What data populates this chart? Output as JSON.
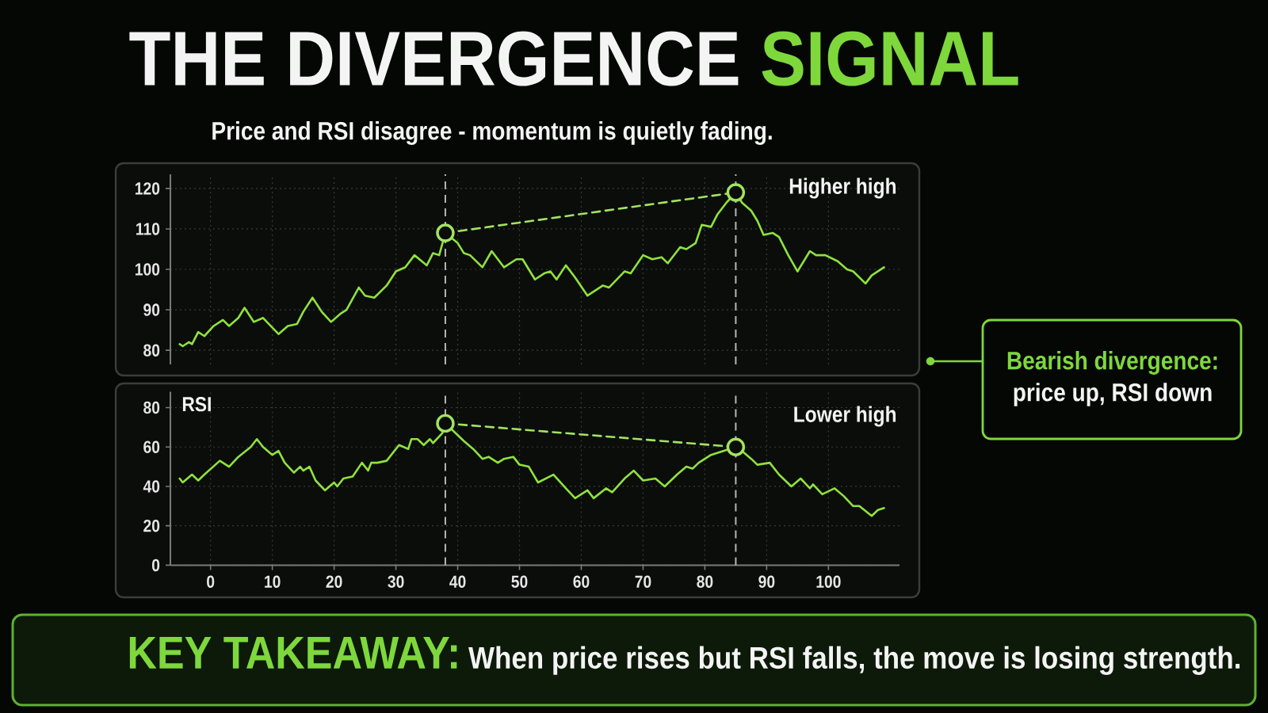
{
  "chart_data": [
    {
      "type": "line",
      "title": "THE DIVERGENCE **SIGNAL**",
      "subtitle": "Price and RSI disagree - momentum is quietly fading.",
      "xlim": [
        -6.5,
        111.5
      ],
      "xticks": [
        0,
        10,
        20,
        30,
        40,
        50,
        60,
        70,
        80,
        90,
        100
      ],
      "ylim": [
        76.5,
        123.5
      ],
      "yticks": [
        80,
        90,
        100,
        110,
        120
      ],
      "grid": true,
      "tick_labels": "y",
      "series": [
        {
          "color": "#8fe23c",
          "x": [
            -5,
            -4.5,
            -3.5,
            -3,
            -2,
            -1,
            0.5,
            2,
            3,
            4.5,
            5.5,
            7,
            8.5,
            11,
            12.5,
            14,
            15,
            16.5,
            18,
            19.5,
            21,
            22,
            24,
            25,
            26.5,
            28.5,
            30,
            31.5,
            33,
            35,
            36,
            37,
            38,
            40,
            41,
            42,
            44,
            45.5,
            47.5,
            49.5,
            50.5,
            52.5,
            54,
            55,
            56,
            57.5,
            59,
            61,
            63.5,
            64.5,
            67,
            68,
            70,
            71.5,
            73,
            74,
            76,
            77,
            78.5,
            79.5,
            81,
            82,
            83.5,
            85,
            86,
            87.5,
            88.5,
            89.5,
            91,
            92,
            93.5,
            95,
            97,
            98,
            99.5,
            101.5,
            103,
            104,
            106,
            107,
            109
          ],
          "values": [
            81.5,
            81,
            82,
            81.5,
            84.5,
            83.5,
            86,
            87.5,
            86,
            88,
            90.5,
            87,
            88,
            84,
            86,
            86.5,
            89.5,
            93,
            89.5,
            87,
            89,
            90,
            95.5,
            93.5,
            93,
            96,
            99.5,
            100.5,
            103.5,
            101,
            104,
            103.5,
            109,
            106.5,
            104,
            103.5,
            100.5,
            104.5,
            100.5,
            102.5,
            102.5,
            97.5,
            99,
            99.5,
            97.5,
            101,
            98,
            93.5,
            96,
            95.5,
            99.5,
            99,
            103.5,
            102.5,
            103,
            101.5,
            105.5,
            105,
            106.5,
            111,
            110.5,
            113.5,
            116.5,
            119,
            116.5,
            114.5,
            112,
            108.5,
            109,
            108,
            103.5,
            99.5,
            104.5,
            103.5,
            103.5,
            102,
            100,
            99.5,
            96.5,
            98.5,
            100.5
          ]
        },
        {
          "color": "#a2e35f",
          "x": [
            38,
            85
          ],
          "values": [
            109,
            119
          ],
          "marker": "circle",
          "line_style": "dashed"
        }
      ],
      "ref_lines": [
        {
          "axis": "x",
          "value": 38,
          "color": "#b5b5b5",
          "line_style": "dashed"
        },
        {
          "axis": "x",
          "value": 85,
          "color": "#b5b5b5",
          "line_style": "dashed"
        }
      ],
      "annotations": [
        "Higher high",
        "Bearish divergence:",
        "price up, RSI down"
      ]
    },
    {
      "type": "line",
      "title": "RSI",
      "xlim": [
        -6.5,
        111.5
      ],
      "xticks": [
        0,
        10,
        20,
        30,
        40,
        50,
        60,
        70,
        80,
        90,
        100
      ],
      "ylim": [
        0,
        88
      ],
      "yticks": [
        0,
        20,
        40,
        60,
        80
      ],
      "grid": true,
      "series": [
        {
          "color": "#8fe23c",
          "x": [
            -5,
            -4.5,
            -3,
            -2,
            -1,
            1.5,
            3,
            4.5,
            6.5,
            7.5,
            8.5,
            10,
            11,
            12,
            13.5,
            14.5,
            15,
            16,
            17,
            18.5,
            20,
            20.5,
            21.5,
            23,
            24.5,
            25.5,
            26,
            27,
            28.5,
            30.5,
            32,
            32.5,
            33.5,
            34.5,
            35.5,
            36,
            37.5,
            38,
            40,
            41,
            42.5,
            44,
            45,
            46.5,
            47.5,
            49,
            50,
            51.5,
            53,
            55.5,
            57.5,
            59,
            61,
            62,
            64,
            65,
            67,
            68.5,
            70,
            72,
            73.5,
            75.5,
            77,
            78,
            79,
            81,
            83,
            85,
            86,
            87.5,
            88.5,
            90.5,
            92,
            94,
            95.5,
            97,
            97.5,
            99,
            101,
            102.5,
            104,
            105,
            107,
            108,
            109
          ],
          "values": [
            44,
            42,
            46,
            43,
            46,
            53,
            50,
            55,
            60,
            64,
            60,
            56,
            58,
            52,
            47,
            50,
            48,
            50,
            43,
            38,
            42,
            40,
            44,
            45,
            52,
            48,
            52,
            52,
            53,
            61,
            59,
            64,
            64,
            61,
            64,
            62,
            67,
            72,
            66,
            63,
            59,
            54,
            55,
            52,
            54,
            55,
            51,
            50,
            42,
            46,
            39,
            34,
            38,
            34,
            39,
            37,
            44,
            48,
            43,
            44,
            40,
            46,
            50,
            49,
            52,
            56,
            58,
            60,
            58,
            54,
            51,
            52,
            46,
            40,
            44,
            39,
            41,
            36,
            39,
            35,
            30,
            30,
            25,
            28,
            29
          ]
        },
        {
          "color": "#a2e35f",
          "x": [
            38,
            85
          ],
          "values": [
            72,
            60
          ],
          "marker": "circle",
          "line_style": "dashed"
        }
      ],
      "ref_lines": [
        {
          "axis": "x",
          "value": 38,
          "color": "#b5b5b5",
          "line_style": "dashed"
        },
        {
          "axis": "x",
          "value": 85,
          "color": "#b5b5b5",
          "line_style": "dashed"
        }
      ],
      "annotations": [
        "Lower high",
        "**KEY TAKEAWAY:** When price rises but RSI falls, the move is losing strength."
      ]
    }
  ]
}
